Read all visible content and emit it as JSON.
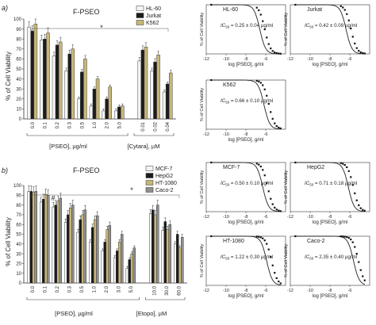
{
  "panel_a": {
    "label": "a)",
    "title": "F-PSEO",
    "chart_data": {
      "type": "bar",
      "ylabel": "% of Cell Viability",
      "ylim": [
        0,
        100
      ],
      "yticks": [
        "0",
        "10",
        "20",
        "30",
        "40",
        "50",
        "60",
        "70",
        "80",
        "90",
        "100"
      ],
      "categories": [
        "0.0",
        "0.1",
        "0.2",
        "0.3",
        "0.5",
        "1.0",
        "2.0",
        "5.0",
        "0.01",
        "0.02",
        "0.04"
      ],
      "series": [
        {
          "name": "HL-60",
          "color": "#f4f4f4",
          "values": [
            92,
            79,
            63,
            48,
            20,
            13,
            8,
            8,
            58,
            48,
            27
          ]
        },
        {
          "name": "Jurkat",
          "color": "#1c1c1c",
          "values": [
            88,
            80,
            74,
            65,
            47,
            30,
            20,
            12,
            69,
            57,
            35
          ]
        },
        {
          "name": "K562",
          "color": "#c8b679",
          "values": [
            95,
            86,
            77,
            70,
            60,
            40,
            32,
            13,
            72,
            64,
            46
          ]
        }
      ],
      "group_labels": [
        "[PSEO], µg/ml",
        "[Cytara], µM"
      ],
      "significance": "*"
    }
  },
  "panel_b": {
    "label": "b)",
    "title": "F-PSEO",
    "chart_data": {
      "type": "bar",
      "ylabel": "% of Cell Viability",
      "ylim": [
        0,
        100
      ],
      "yticks": [
        "0",
        "10",
        "20",
        "30",
        "40",
        "50",
        "60",
        "70",
        "80",
        "90",
        "100"
      ],
      "categories": [
        "0.0",
        "0.1",
        "0.2",
        "0.3",
        "0.5",
        "1.0",
        "2.0",
        "3.0",
        "5.0",
        "10.0",
        "30.0",
        "60.0"
      ],
      "series": [
        {
          "name": "MCF-7",
          "color": "#f4f4f4",
          "values": [
            94,
            83,
            78,
            62,
            52,
            42,
            33,
            26,
            15,
            71,
            54,
            40
          ]
        },
        {
          "name": "HepG2",
          "color": "#1c1c1c",
          "values": [
            94,
            86,
            80,
            70,
            65,
            57,
            42,
            33,
            24,
            75,
            63,
            50
          ]
        },
        {
          "name": "HT-1080",
          "color": "#c8b679",
          "values": [
            93,
            91,
            84,
            77,
            70,
            65,
            55,
            42,
            30,
            70,
            55,
            36
          ]
        },
        {
          "name": "Caco-2",
          "color": "#8e8e8e",
          "values": [
            94,
            90,
            87,
            80,
            75,
            69,
            59,
            50,
            36,
            80,
            60,
            47
          ]
        }
      ],
      "group_labels": [
        "[PSEO], µg/ml",
        "[Etopo], µM"
      ],
      "significance": "*",
      "annotation": "#"
    }
  },
  "dose_response": {
    "ylabel": "% of Cell Viability",
    "xlabel": "log [PSEO], g/ml",
    "xticks": [
      "-12",
      "-10",
      "-8",
      "-6"
    ],
    "xlim": [
      -12,
      -4
    ],
    "ylim": [
      0,
      100
    ],
    "panels_a": [
      {
        "cell": "HL-60",
        "ic50_prefix": "IC",
        "ic50_sub": "50",
        "ic50_value": " = 0.25 ± 0.04 µg/ml",
        "logic50": -6.6
      },
      {
        "cell": "Jurkat",
        "ic50_prefix": "IC",
        "ic50_sub": "50",
        "ic50_value": " = 0.42 ± 0.09 µg/ml",
        "logic50": -6.38
      },
      {
        "cell": "K562",
        "ic50_prefix": "IC",
        "ic50_sub": "50",
        "ic50_value": " = 0.66 ± 0.10 µg/ml",
        "logic50": -6.18
      }
    ],
    "panels_b": [
      {
        "cell": "MCF-7",
        "ic50_prefix": "IC",
        "ic50_sub": "50",
        "ic50_value": " = 0.50 ± 0.10 µg/ml",
        "logic50": -6.3
      },
      {
        "cell": "HepG2",
        "ic50_prefix": "IC",
        "ic50_sub": "50",
        "ic50_value": " = 0.71 ± 0.18 µg/ml",
        "logic50": -6.15
      },
      {
        "cell": "HT-1080",
        "ic50_prefix": "IC",
        "ic50_sub": "50",
        "ic50_value": " = 1.22 ± 0.30 µg/ml",
        "logic50": -5.91
      },
      {
        "cell": "Caco-2",
        "ic50_prefix": "IC",
        "ic50_sub": "50",
        "ic50_value": " = 2.35 ± 0.40 µg/ml",
        "logic50": -5.63
      }
    ]
  }
}
